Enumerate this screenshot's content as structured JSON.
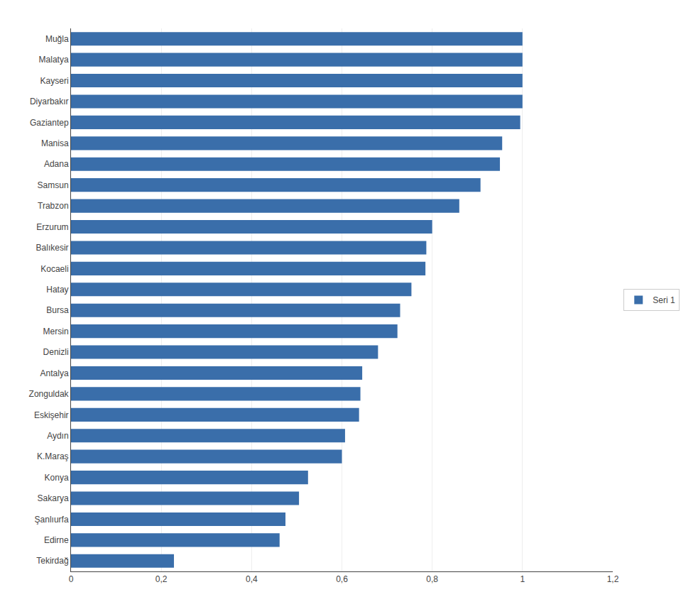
{
  "chart_data": {
    "type": "bar",
    "orientation": "horizontal",
    "categories": [
      "Muğla",
      "Malatya",
      "Kayseri",
      "Diyarbakır",
      "Gaziantep",
      "Manisa",
      "Adana",
      "Samsun",
      "Trabzon",
      "Erzurum",
      "Balıkesir",
      "Kocaeli",
      "Hatay",
      "Bursa",
      "Mersin",
      "Denizli",
      "Antalya",
      "Zonguldak",
      "Eskişehir",
      "Aydın",
      "K.Maraş",
      "Konya",
      "Sakarya",
      "Şanlıurfa",
      "Edirne",
      "Tekirdağ"
    ],
    "series": [
      {
        "name": "Seri 1",
        "color": "#3A6EAA",
        "values": [
          1.0,
          1.0,
          1.0,
          1.0,
          0.995,
          0.955,
          0.95,
          0.907,
          0.86,
          0.8,
          0.787,
          0.785,
          0.754,
          0.729,
          0.723,
          0.68,
          0.645,
          0.641,
          0.638,
          0.607,
          0.6,
          0.525,
          0.505,
          0.475,
          0.462,
          0.228
        ]
      }
    ],
    "xlim": [
      0,
      1.2
    ],
    "xticks": [
      0,
      {
        "value": 0.2,
        "label": "0,2"
      },
      {
        "value": 0.4,
        "label": "0,4"
      },
      {
        "value": 0.6,
        "label": "0,6"
      },
      {
        "value": 0.8,
        "label": "0,8"
      },
      1,
      {
        "value": 1.2,
        "label": "1,2"
      }
    ],
    "grid": true,
    "legend": "right"
  }
}
